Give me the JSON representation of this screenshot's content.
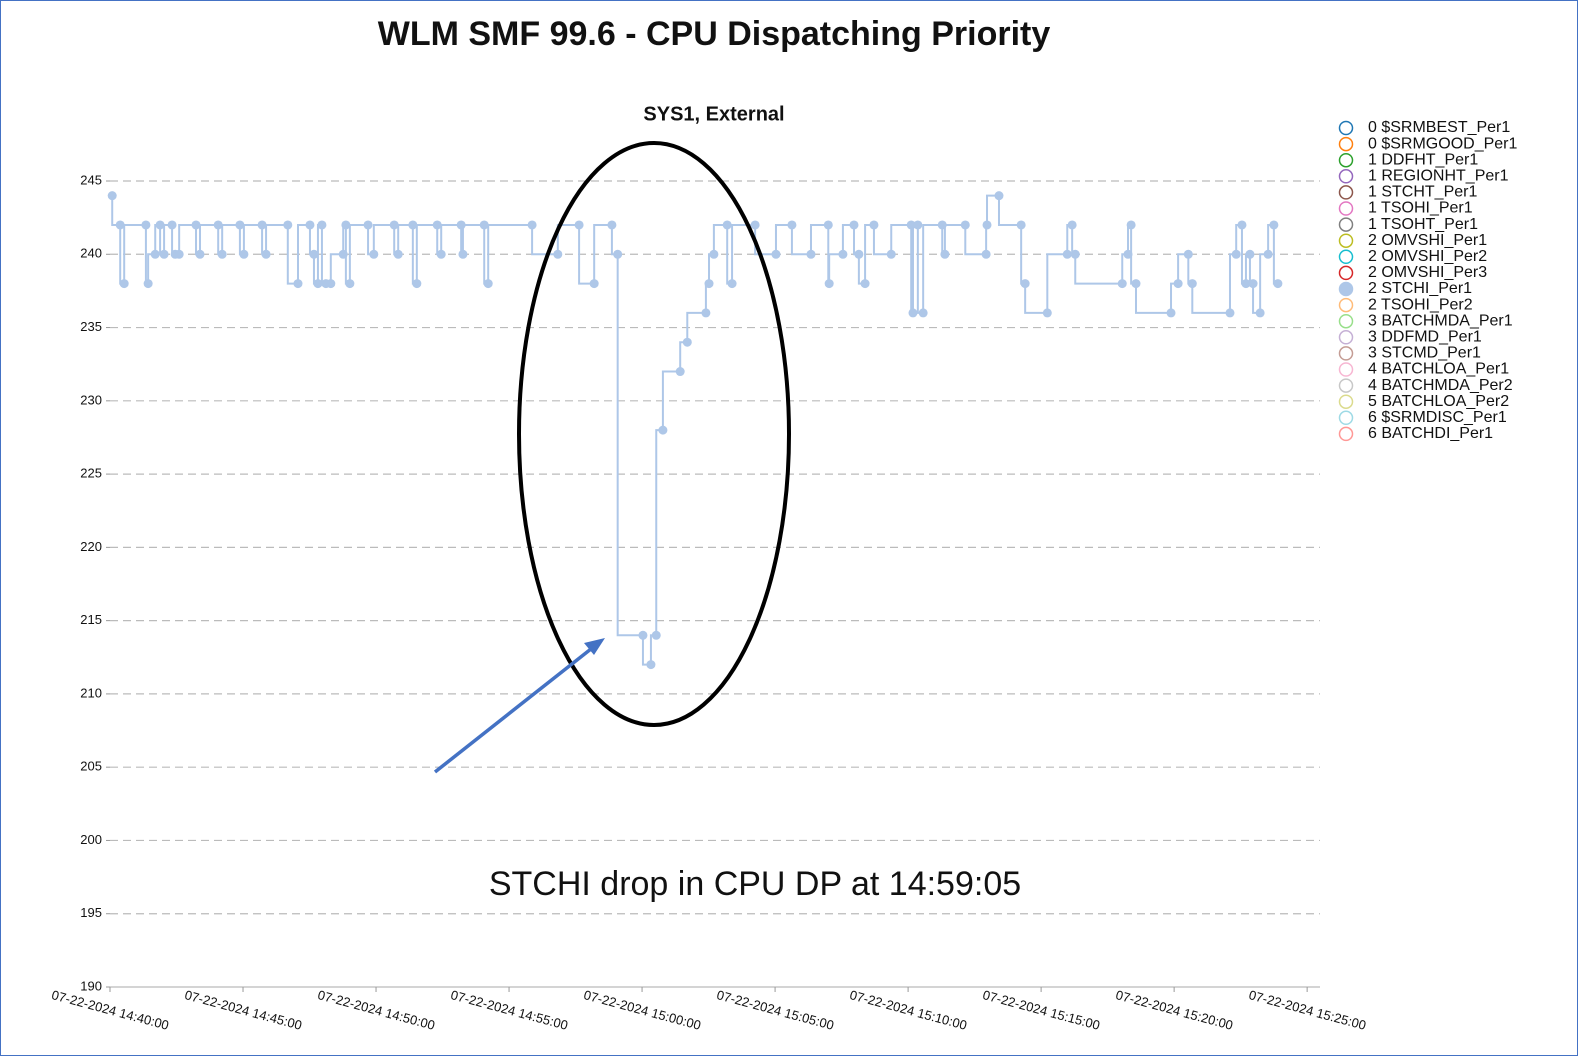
{
  "chart_data": {
    "type": "line",
    "step": "before",
    "title": "WLM SMF 99.6 - CPU Dispatching Priority",
    "subtitle": "SYS1, External",
    "annotation": "STCHI drop in CPU DP at 14:59:05",
    "ylim": [
      190,
      248
    ],
    "yticks": [
      190,
      195,
      200,
      205,
      210,
      215,
      220,
      225,
      230,
      235,
      240,
      245
    ],
    "xlim": [
      "07-22-2024 14:40:00",
      "07-22-2024 15:25:29"
    ],
    "xticks": [
      "07-22-2024 14:40:00",
      "07-22-2024 14:45:00",
      "07-22-2024 14:50:00",
      "07-22-2024 14:55:00",
      "07-22-2024 15:00:00",
      "07-22-2024 15:05:00",
      "07-22-2024 15:10:00",
      "07-22-2024 15:15:00",
      "07-22-2024 15:20:00",
      "07-22-2024 15:25:00"
    ],
    "grid": true,
    "legend": "right",
    "series": [
      {
        "name": "0 $SRMBEST_Per1",
        "color": "#1f77b4"
      },
      {
        "name": "0 $SRMGOOD_Per1",
        "color": "#ff7f0e"
      },
      {
        "name": "1 DDFHT_Per1",
        "color": "#2ca02c"
      },
      {
        "name": "1 REGIONHT_Per1",
        "color": "#9467bd"
      },
      {
        "name": "1 STCHT_Per1",
        "color": "#8c564b"
      },
      {
        "name": "1 TSOHI_Per1",
        "color": "#e377c2"
      },
      {
        "name": "1 TSOHT_Per1",
        "color": "#7f7f7f"
      },
      {
        "name": "2 OMVSHI_Per1",
        "color": "#bcbd22"
      },
      {
        "name": "2 OMVSHI_Per2",
        "color": "#17becf"
      },
      {
        "name": "2 OMVSHI_Per3",
        "color": "#d62728"
      },
      {
        "name": "2 STCHI_Per1",
        "color": "#aec7e8",
        "x": [
          "07-22-2024 14:40:05",
          "07-22-2024 14:40:23",
          "07-22-2024 14:40:32",
          "07-22-2024 14:41:21",
          "07-22-2024 14:41:26",
          "07-22-2024 14:41:42",
          "07-22-2024 14:41:53",
          "07-22-2024 14:42:02",
          "07-22-2024 14:42:20",
          "07-22-2024 14:42:27",
          "07-22-2024 14:42:36",
          "07-22-2024 14:43:14",
          "07-22-2024 14:43:23",
          "07-22-2024 14:44:04",
          "07-22-2024 14:44:13",
          "07-22-2024 14:44:53",
          "07-22-2024 14:45:02",
          "07-22-2024 14:45:43",
          "07-22-2024 14:45:52",
          "07-22-2024 14:46:41",
          "07-22-2024 14:47:04",
          "07-22-2024 14:47:31",
          "07-22-2024 14:47:40",
          "07-22-2024 14:47:49",
          "07-22-2024 14:47:58",
          "07-22-2024 14:48:07",
          "07-22-2024 14:48:18",
          "07-22-2024 14:48:46",
          "07-22-2024 14:48:52",
          "07-22-2024 14:49:01",
          "07-22-2024 14:49:42",
          "07-22-2024 14:49:55",
          "07-22-2024 14:50:41",
          "07-22-2024 14:50:50",
          "07-22-2024 14:51:23",
          "07-22-2024 14:51:32",
          "07-22-2024 14:52:18",
          "07-22-2024 14:52:27",
          "07-22-2024 14:53:12",
          "07-22-2024 14:53:16",
          "07-22-2024 14:54:04",
          "07-22-2024 14:54:13",
          "07-22-2024 14:55:52",
          "07-22-2024 14:56:50",
          "07-22-2024 14:57:38",
          "07-22-2024 14:58:12",
          "07-22-2024 14:58:52",
          "07-22-2024 14:59:05",
          "07-22-2024 15:00:02",
          "07-22-2024 15:00:20",
          "07-22-2024 15:00:32",
          "07-22-2024 15:00:47",
          "07-22-2024 15:01:26",
          "07-22-2024 15:01:42",
          "07-22-2024 15:02:24",
          "07-22-2024 15:02:31",
          "07-22-2024 15:02:42",
          "07-22-2024 15:03:12",
          "07-22-2024 15:03:23",
          "07-22-2024 15:04:15",
          "07-22-2024 15:05:02",
          "07-22-2024 15:05:38",
          "07-22-2024 15:06:21",
          "07-22-2024 15:07:00",
          "07-22-2024 15:07:02",
          "07-22-2024 15:07:33",
          "07-22-2024 15:07:58",
          "07-22-2024 15:08:09",
          "07-22-2024 15:08:23",
          "07-22-2024 15:08:43",
          "07-22-2024 15:09:22",
          "07-22-2024 15:10:07",
          "07-22-2024 15:10:11",
          "07-22-2024 15:10:22",
          "07-22-2024 15:10:34",
          "07-22-2024 15:11:17",
          "07-22-2024 15:11:23",
          "07-22-2024 15:12:09",
          "07-22-2024 15:12:56",
          "07-22-2024 15:12:58",
          "07-22-2024 15:13:25",
          "07-22-2024 15:14:15",
          "07-22-2024 15:14:24",
          "07-22-2024 15:15:14",
          "07-22-2024 15:15:59",
          "07-22-2024 15:16:10",
          "07-22-2024 15:16:17",
          "07-22-2024 15:18:03",
          "07-22-2024 15:18:16",
          "07-22-2024 15:18:23",
          "07-22-2024 15:18:34",
          "07-22-2024 15:19:53",
          "07-22-2024 15:20:09",
          "07-22-2024 15:20:32",
          "07-22-2024 15:20:41",
          "07-22-2024 15:22:06",
          "07-22-2024 15:22:20",
          "07-22-2024 15:22:33",
          "07-22-2024 15:22:42",
          "07-22-2024 15:22:51",
          "07-22-2024 15:22:58",
          "07-22-2024 15:23:14",
          "07-22-2024 15:23:32",
          "07-22-2024 15:23:45",
          "07-22-2024 15:23:54"
        ],
        "values": [
          244,
          242,
          238,
          242,
          238,
          240,
          242,
          240,
          242,
          240,
          240,
          242,
          240,
          242,
          240,
          242,
          240,
          242,
          240,
          242,
          238,
          242,
          240,
          238,
          242,
          238,
          238,
          240,
          242,
          238,
          242,
          240,
          242,
          240,
          242,
          238,
          242,
          240,
          242,
          240,
          242,
          238,
          242,
          240,
          242,
          238,
          242,
          240,
          214,
          212,
          214,
          228,
          232,
          234,
          236,
          238,
          240,
          242,
          238,
          242,
          240,
          242,
          240,
          242,
          238,
          240,
          242,
          240,
          238,
          242,
          240,
          242,
          236,
          242,
          236,
          242,
          240,
          242,
          240,
          242,
          244,
          242,
          238,
          236,
          240,
          242,
          240,
          238,
          240,
          242,
          238,
          236,
          238,
          240,
          238,
          236,
          240,
          242,
          238,
          240,
          238,
          236,
          240,
          242,
          238
        ]
      },
      {
        "name": "2 TSOHI_Per2",
        "color": "#ffbb78"
      },
      {
        "name": "3 BATCHMDA_Per1",
        "color": "#98df8a"
      },
      {
        "name": "3 DDFMD_Per1",
        "color": "#c5b0d5"
      },
      {
        "name": "3 STCMD_Per1",
        "color": "#c49c94"
      },
      {
        "name": "4 BATCHLOA_Per1",
        "color": "#f7b6d2"
      },
      {
        "name": "4 BATCHMDA_Per2",
        "color": "#c7c7c7"
      },
      {
        "name": "5 BATCHLOA_Per2",
        "color": "#dbdb8d"
      },
      {
        "name": "6 $SRMDISC_Per1",
        "color": "#9edae5"
      },
      {
        "name": "6 BATCHDI_Per1",
        "color": "#ff9896"
      }
    ]
  }
}
